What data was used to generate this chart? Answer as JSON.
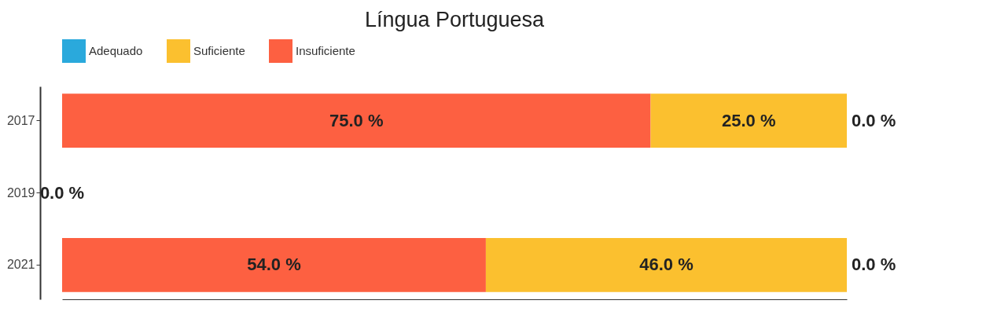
{
  "chart_data": {
    "type": "bar",
    "orientation": "horizontal",
    "stacked": true,
    "title": "Língua Portuguesa",
    "categories": [
      "2017",
      "2019",
      "2021"
    ],
    "series": [
      {
        "name": "Insuficiente",
        "color": "#fd6041",
        "values": [
          75.0,
          0.0,
          54.0
        ],
        "value_labels": [
          "75.0 %",
          "0.0 %",
          "54.0 %"
        ]
      },
      {
        "name": "Suficiente",
        "color": "#fbc02f",
        "values": [
          25.0,
          0.0,
          46.0
        ],
        "value_labels": [
          "25.0 %",
          null,
          "46.0 %"
        ]
      },
      {
        "name": "Adequado",
        "color": "#2aa9dc",
        "values": [
          0.0,
          0.0,
          0.0
        ],
        "value_labels": [
          "0.0 %",
          null,
          "0.0 %"
        ]
      }
    ],
    "xlim": [
      0,
      100
    ],
    "tick_labels": "y",
    "legend": "top"
  }
}
